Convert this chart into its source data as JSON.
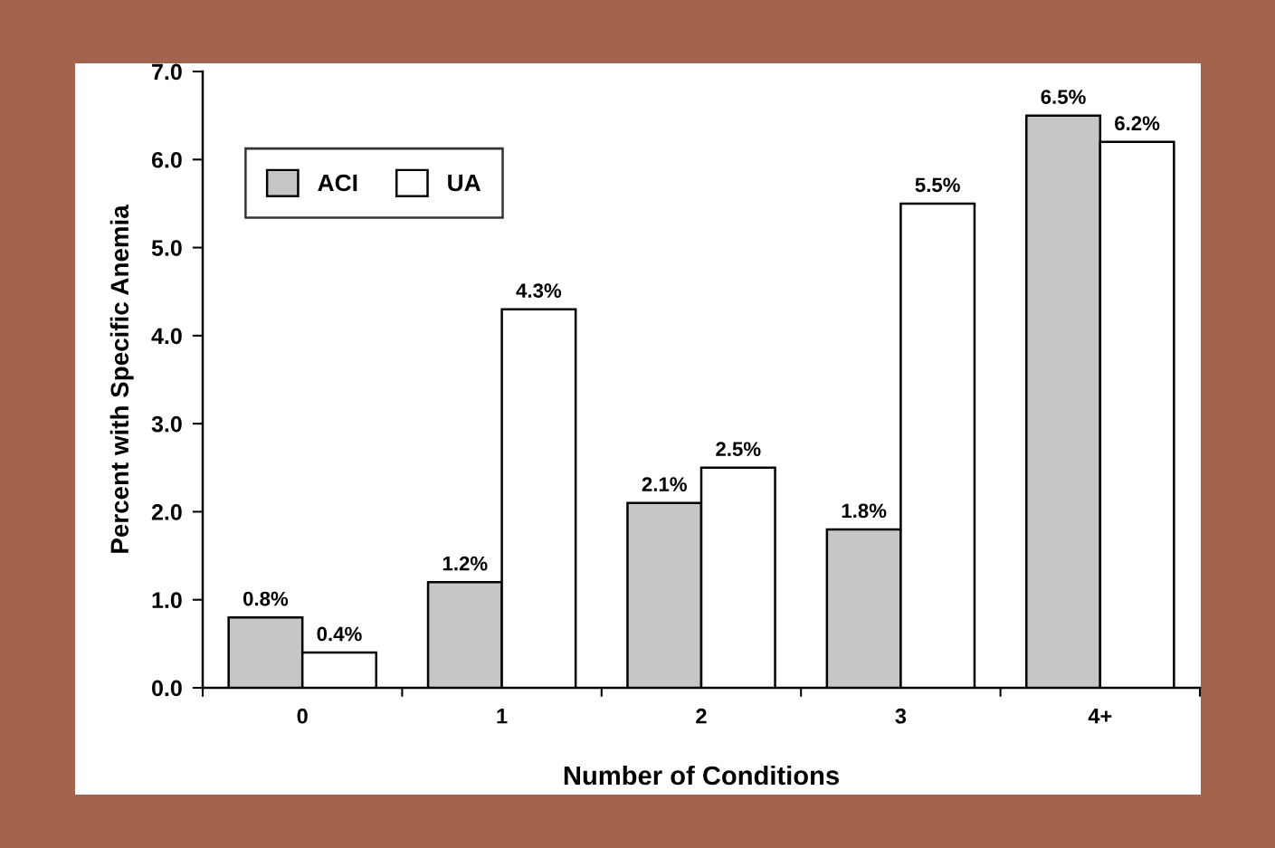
{
  "chart_data": {
    "type": "bar",
    "xlabel": "Number of Conditions",
    "ylabel": "Percent with Specific Anemia",
    "categories": [
      "0",
      "1",
      "2",
      "3",
      "4+"
    ],
    "series": [
      {
        "name": "ACI",
        "color": "#c6c6c6",
        "values": [
          0.8,
          1.2,
          2.1,
          1.8,
          6.5
        ],
        "value_labels": [
          "0.8%",
          "1.2%",
          "2.1%",
          "1.8%",
          "6.5%"
        ]
      },
      {
        "name": "UA",
        "color": "#ffffff",
        "values": [
          0.4,
          4.3,
          2.5,
          5.5,
          6.2
        ],
        "value_labels": [
          "0.4%",
          "4.3%",
          "2.5%",
          "5.5%",
          "6.2%"
        ]
      }
    ],
    "ylim": [
      0,
      7
    ],
    "yticks": [
      {
        "value": 0,
        "label": "0.0"
      },
      {
        "value": 1,
        "label": "1.0"
      },
      {
        "value": 2,
        "label": "2.0"
      },
      {
        "value": 3,
        "label": "3.0"
      },
      {
        "value": 4,
        "label": "4.0"
      },
      {
        "value": 5,
        "label": "5.0"
      },
      {
        "value": 6,
        "label": "6.0"
      },
      {
        "value": 7,
        "label": "7.0"
      }
    ],
    "grid": false,
    "legend": "top left"
  }
}
